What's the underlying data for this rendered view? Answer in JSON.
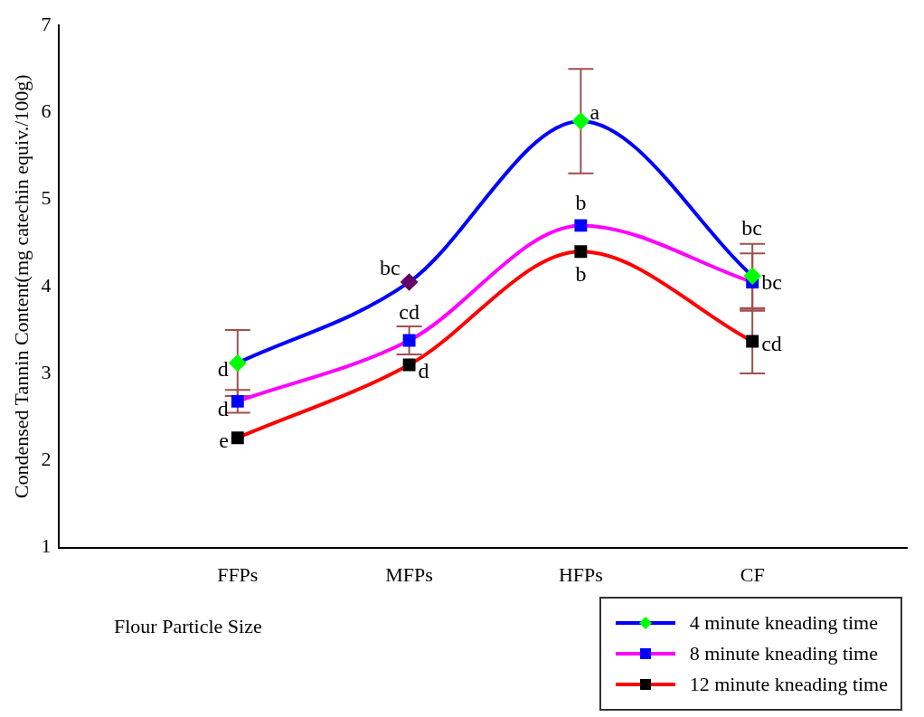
{
  "chart_data": {
    "type": "line",
    "xlabel": "Flour Particle Size",
    "ylabel": "Condensed Tannin Content(mg catechin equiv./100g)",
    "categories": [
      "FFPs",
      "MFPs",
      "HFPs",
      "CF"
    ],
    "ylim": [
      1,
      7
    ],
    "yticks": [
      1,
      2,
      3,
      4,
      5,
      6,
      7
    ],
    "grid": false,
    "legend": "bottom right",
    "line_style": "solid",
    "series": [
      {
        "name": "4 minute kneading time",
        "color": "#0000ff",
        "marker": "diamond",
        "colors": [
          "#00ff00",
          "#660066",
          "#00ff00",
          "#00ff00"
        ],
        "values": [
          3.12,
          4.05,
          5.9,
          4.12
        ],
        "errors": [
          0.38,
          null,
          0.6,
          0.37
        ]
      },
      {
        "name": "8 minute kneading time",
        "color": "#ff00ff",
        "marker": "square",
        "colors": [
          "#0000ff",
          "#0000ff",
          "#0000ff",
          "#0000ff"
        ],
        "values": [
          2.68,
          3.38,
          4.7,
          4.05
        ],
        "errors": [
          0.13,
          0.16,
          null,
          0.33
        ]
      },
      {
        "name": "12 minute kneading time",
        "color": "#ff0000",
        "marker": "square",
        "colors": [
          "#000000",
          "#000000",
          "#000000",
          "#000000"
        ],
        "values": [
          2.26,
          3.1,
          4.4,
          3.37
        ],
        "errors": [
          null,
          null,
          null,
          0.37
        ]
      }
    ],
    "annotations": [
      {
        "text": "d",
        "x": "FFPs",
        "y": 3.12
      },
      {
        "text": "bc",
        "x": "MFPs",
        "y": 4.05
      },
      {
        "text": "a",
        "x": "HFPs",
        "y": 5.9
      },
      {
        "text": "bc",
        "x": "CF",
        "y": 4.12
      },
      {
        "text": "d",
        "x": "FFPs",
        "y": 2.68
      },
      {
        "text": "cd",
        "x": "MFPs",
        "y": 3.38
      },
      {
        "text": "b",
        "x": "HFPs",
        "y": 4.7
      },
      {
        "text": "bc",
        "x": "CF",
        "y": 4.05
      },
      {
        "text": "e",
        "x": "FFPs",
        "y": 2.26
      },
      {
        "text": "d",
        "x": "MFPs",
        "y": 3.1
      },
      {
        "text": "b",
        "x": "HFPs",
        "y": 4.4
      },
      {
        "text": "cd",
        "x": "CF",
        "y": 3.37
      }
    ]
  }
}
